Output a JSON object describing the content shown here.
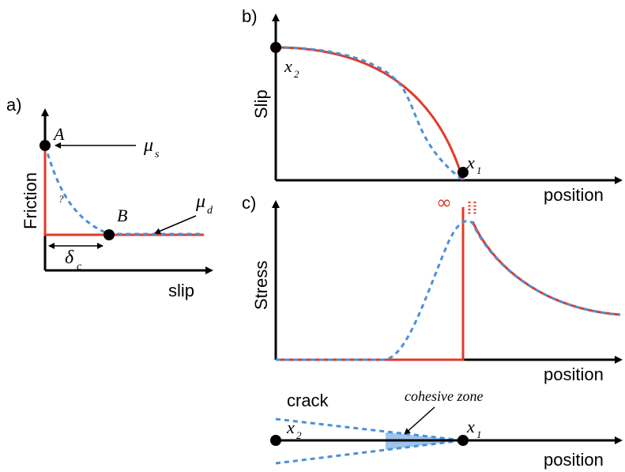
{
  "panel_a": {
    "tag": "a)",
    "ylabel": "Friction",
    "xlabel": "slip",
    "point_a": "A",
    "point_b": "B",
    "mu_s": "μ",
    "mu_s_sub": "s",
    "mu_d": "μ",
    "mu_d_sub": "d",
    "delta": "δ",
    "delta_sub": "c",
    "question": "?"
  },
  "panel_b": {
    "tag": "b)",
    "ylabel": "Slip",
    "xlabel": "position",
    "x2": "x",
    "x2_sub": "2",
    "x1": "x",
    "x1_sub": "1"
  },
  "panel_c": {
    "tag": "c)",
    "ylabel": "Stress",
    "xlabel": "position",
    "infinity": "∞"
  },
  "panel_d": {
    "crack": "crack",
    "cohesive_zone": "cohesive zone",
    "xlabel": "position",
    "x2": "x",
    "x2_sub": "2",
    "x1": "x",
    "x1_sub": "1"
  },
  "colors": {
    "red": "#e03a2a",
    "blue": "#4a90d9",
    "fill": "#9ec4ec"
  }
}
